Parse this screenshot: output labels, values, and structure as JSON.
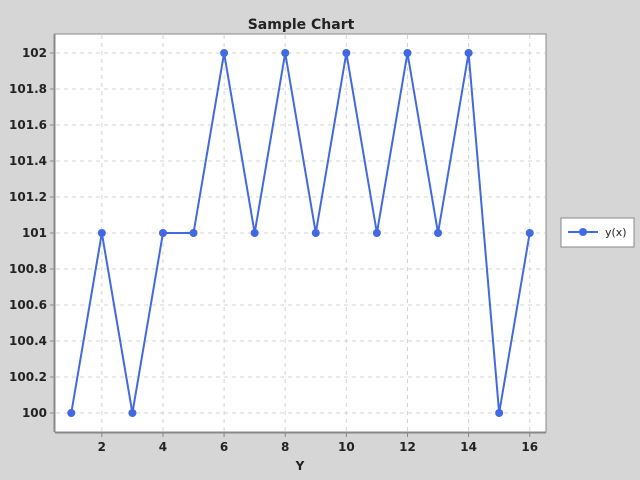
{
  "chart_data": {
    "type": "line",
    "title": "Sample Chart",
    "xlabel": "Y",
    "ylabel": "",
    "xlim": [
      0.5,
      16.5
    ],
    "ylim": [
      99.9,
      102.1
    ],
    "x_ticks": [
      2,
      4,
      6,
      8,
      10,
      12,
      14,
      16
    ],
    "y_ticks": [
      100,
      100.2,
      100.4,
      100.6,
      100.8,
      101,
      101.2,
      101.4,
      101.6,
      101.8,
      102
    ],
    "grid": true,
    "legend_position": "right",
    "series": [
      {
        "name": "y(x)",
        "color": "#4169e1",
        "x": [
          1,
          2,
          3,
          4,
          5,
          6,
          7,
          8,
          9,
          10,
          11,
          12,
          13,
          14,
          15,
          16
        ],
        "y": [
          100,
          101,
          100,
          101,
          101,
          102,
          101,
          102,
          101,
          102,
          101,
          102,
          101,
          102,
          100,
          101
        ]
      }
    ]
  }
}
